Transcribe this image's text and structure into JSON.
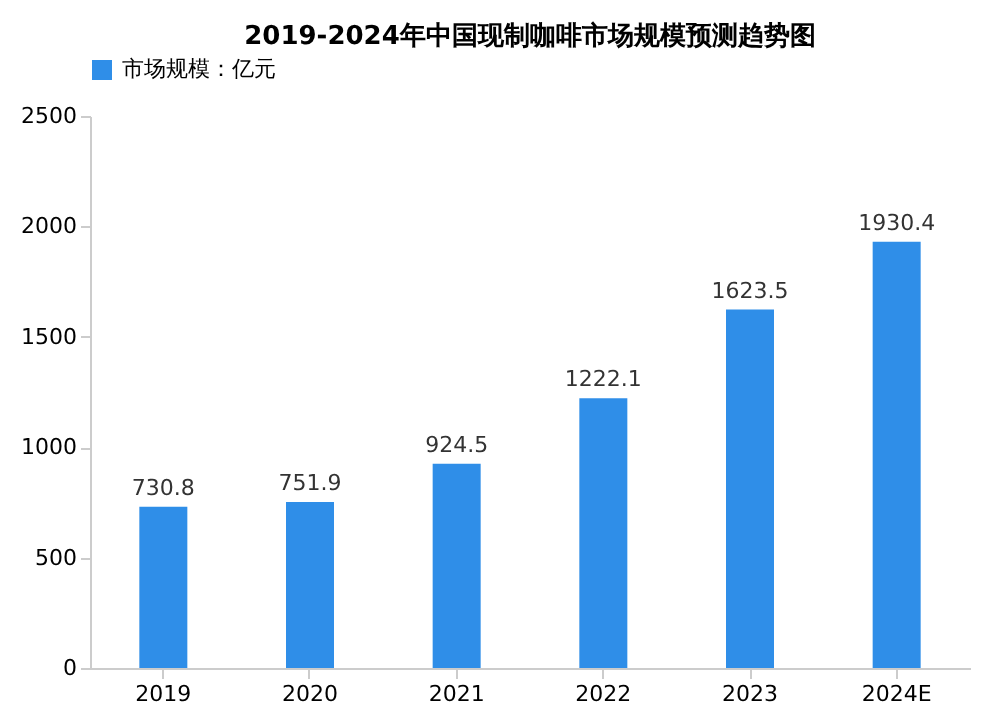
{
  "chart_data": {
    "type": "bar",
    "title": "2019-2024年中国现制咖啡市场规模预测趋势图",
    "categories": [
      "2019",
      "2020",
      "2021",
      "2022",
      "2023",
      "2024E"
    ],
    "series": [
      {
        "name": "市场规模：亿元",
        "color": "#2f8ee8",
        "values": [
          730.8,
          751.9,
          924.5,
          1222.1,
          1623.5,
          1930.4
        ]
      }
    ],
    "ylim": [
      0,
      2500
    ],
    "yticks": [
      0,
      500,
      1000,
      1500,
      2000,
      2500
    ],
    "data_labels": true,
    "grid": false,
    "legend": "top"
  }
}
